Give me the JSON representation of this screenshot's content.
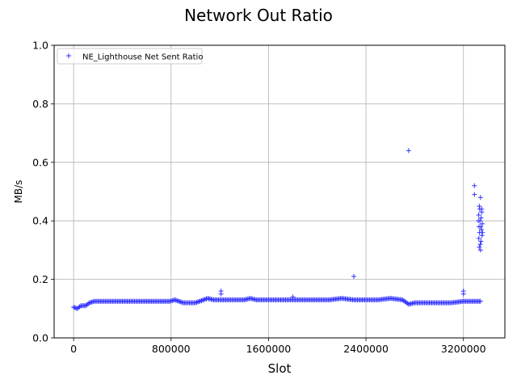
{
  "chart_data": {
    "type": "scatter",
    "title": "Network Out Ratio",
    "xlabel": "Slot",
    "ylabel": "MB/s",
    "xlim": [
      -160000,
      3540000
    ],
    "ylim": [
      0,
      1
    ],
    "x_ticks": [
      0,
      800000,
      1600000,
      2400000,
      3200000
    ],
    "x_tick_labels": [
      "0",
      "800000",
      "1600000",
      "2400000",
      "3200000"
    ],
    "y_ticks": [
      0.0,
      0.2,
      0.4,
      0.6,
      0.8,
      1.0
    ],
    "y_tick_labels": [
      "0.0",
      "0.2",
      "0.4",
      "0.6",
      "0.8",
      "1.0"
    ],
    "grid": true,
    "legend_position": "top-left",
    "marker": "+",
    "color": "#3333ff",
    "series": [
      {
        "name": "NE_Lighthouse Net Sent Ratio",
        "baseline": [
          [
            0,
            0.105
          ],
          [
            30000,
            0.1
          ],
          [
            60000,
            0.11
          ],
          [
            100000,
            0.11
          ],
          [
            130000,
            0.12
          ],
          [
            170000,
            0.125
          ],
          [
            250000,
            0.125
          ],
          [
            400000,
            0.125
          ],
          [
            600000,
            0.125
          ],
          [
            790000,
            0.125
          ],
          [
            830000,
            0.13
          ],
          [
            900000,
            0.12
          ],
          [
            1000000,
            0.12
          ],
          [
            1100000,
            0.135
          ],
          [
            1150000,
            0.13
          ],
          [
            1200000,
            0.13
          ],
          [
            1300000,
            0.13
          ],
          [
            1400000,
            0.13
          ],
          [
            1450000,
            0.135
          ],
          [
            1500000,
            0.13
          ],
          [
            1600000,
            0.13
          ],
          [
            1700000,
            0.13
          ],
          [
            1800000,
            0.13
          ],
          [
            1900000,
            0.13
          ],
          [
            2000000,
            0.13
          ],
          [
            2100000,
            0.13
          ],
          [
            2200000,
            0.135
          ],
          [
            2300000,
            0.13
          ],
          [
            2400000,
            0.13
          ],
          [
            2500000,
            0.13
          ],
          [
            2600000,
            0.135
          ],
          [
            2700000,
            0.13
          ],
          [
            2750000,
            0.115
          ],
          [
            2800000,
            0.12
          ],
          [
            2900000,
            0.12
          ],
          [
            3000000,
            0.12
          ],
          [
            3100000,
            0.12
          ],
          [
            3200000,
            0.125
          ],
          [
            3300000,
            0.125
          ],
          [
            3340000,
            0.125
          ]
        ],
        "points": [
          [
            1210000,
            0.16
          ],
          [
            1210000,
            0.15
          ],
          [
            1800000,
            0.14
          ],
          [
            2300000,
            0.21
          ],
          [
            2750000,
            0.64
          ],
          [
            3200000,
            0.16
          ],
          [
            3200000,
            0.15
          ],
          [
            3290000,
            0.52
          ],
          [
            3290000,
            0.49
          ],
          [
            3340000,
            0.48
          ],
          [
            3330000,
            0.45
          ],
          [
            3350000,
            0.44
          ],
          [
            3325000,
            0.42
          ],
          [
            3345000,
            0.41
          ],
          [
            3335000,
            0.4
          ],
          [
            3355000,
            0.39
          ],
          [
            3328000,
            0.38
          ],
          [
            3348000,
            0.37
          ],
          [
            3332000,
            0.36
          ],
          [
            3352000,
            0.35
          ],
          [
            3326000,
            0.34
          ],
          [
            3344000,
            0.33
          ],
          [
            3338000,
            0.32
          ],
          [
            3330000,
            0.31
          ],
          [
            3340000,
            0.3
          ],
          [
            3350000,
            0.43
          ],
          [
            3322000,
            0.4
          ],
          [
            3356000,
            0.36
          ],
          [
            3334000,
            0.44
          ],
          [
            3342000,
            0.38
          ]
        ]
      }
    ]
  }
}
